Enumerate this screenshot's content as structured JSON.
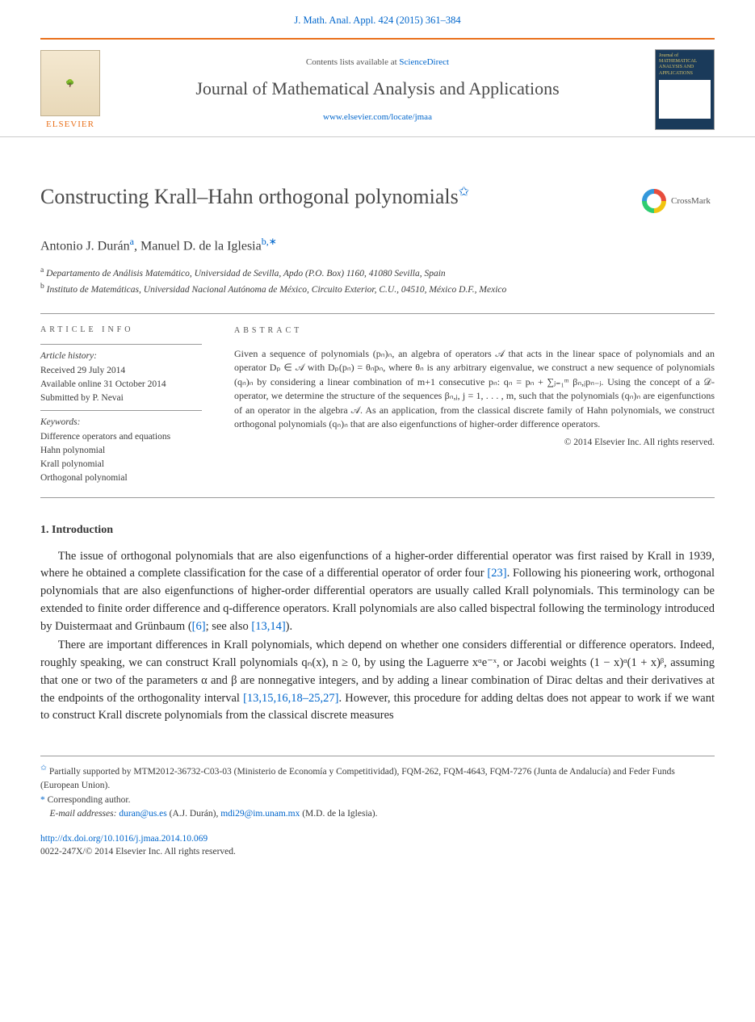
{
  "header": {
    "citation": "J. Math. Anal. Appl. 424 (2015) 361–384",
    "contents_prefix": "Contents lists available at ",
    "contents_link": "ScienceDirect",
    "journal_name": "Journal of Mathematical Analysis and Applications",
    "journal_url": "www.elsevier.com/locate/jmaa",
    "publisher": "ELSEVIER",
    "cover_text": "Journal of MATHEMATICAL ANALYSIS AND APPLICATIONS"
  },
  "article": {
    "title": "Constructing Krall–Hahn orthogonal polynomials",
    "title_note": "✩",
    "crossmark": "CrossMark",
    "authors_html": "Antonio J. Durán",
    "author1": "Antonio J. Durán",
    "author1_sup": "a",
    "author_sep": ", ",
    "author2": "Manuel D. de la Iglesia",
    "author2_sup": "b,∗",
    "affil_a_sup": "a",
    "affil_a": " Departamento de Análisis Matemático, Universidad de Sevilla, Apdo (P.O. Box) 1160, 41080 Sevilla, Spain",
    "affil_b_sup": "b",
    "affil_b": " Instituto de Matemáticas, Universidad Nacional Autónoma de México, Circuito Exterior, C.U., 04510, México D.F., Mexico"
  },
  "info": {
    "heading": "article info",
    "history_label": "Article history:",
    "received": "Received 29 July 2014",
    "available": "Available online 31 October 2014",
    "submitted": "Submitted by P. Nevai",
    "keywords_label": "Keywords:",
    "kw1": "Difference operators and equations",
    "kw2": "Hahn polynomial",
    "kw3": "Krall polynomial",
    "kw4": "Orthogonal polynomial"
  },
  "abstract": {
    "heading": "abstract",
    "text": "Given a sequence of polynomials (pₙ)ₙ, an algebra of operators 𝒜 that acts in the linear space of polynomials and an operator Dₚ ∈ 𝒜 with Dₚ(pₙ) = θₙpₙ, where θₙ is any arbitrary eigenvalue, we construct a new sequence of polynomials (qₙ)ₙ by considering a linear combination of m+1 consecutive pₙ: qₙ = pₙ + ∑ⱼ₌₁ᵐ βₙ,ⱼpₙ₋ⱼ. Using the concept of a 𝒟-operator, we determine the structure of the sequences βₙ,ⱼ, j = 1, . . . , m, such that the polynomials (qₙ)ₙ are eigenfunctions of an operator in the algebra 𝒜. As an application, from the classical discrete family of Hahn polynomials, we construct orthogonal polynomials (qₙ)ₙ that are also eigenfunctions of higher-order difference operators.",
    "copyright": "© 2014 Elsevier Inc. All rights reserved."
  },
  "body": {
    "section1": "1. Introduction",
    "p1a": "The issue of orthogonal polynomials that are also eigenfunctions of a higher-order differential operator was first raised by Krall in 1939, where he obtained a complete classification for the case of a differential operator of order four ",
    "p1_ref1": "[23]",
    "p1b": ". Following his pioneering work, orthogonal polynomials that are also eigenfunctions of higher-order differential operators are usually called Krall polynomials. This terminology can be extended to finite order difference and q-difference operators. Krall polynomials are also called bispectral following the terminology introduced by Duistermaat and Grünbaum (",
    "p1_ref2": "[6]",
    "p1c": "; see also ",
    "p1_ref3": "[13,14]",
    "p1d": ").",
    "p2a": "There are important differences in Krall polynomials, which depend on whether one considers differential or difference operators. Indeed, roughly speaking, we can construct Krall polynomials qₙ(x), n ≥ 0, by using the Laguerre xᵅe⁻ˣ, or Jacobi weights (1 − x)ᵅ(1 + x)ᵝ, assuming that one or two of the parameters α and β are nonnegative integers, and by adding a linear combination of Dirac deltas and their derivatives at the endpoints of the orthogonality interval ",
    "p2_ref1": "[13,15,16,18–25,27]",
    "p2b": ". However, this procedure for adding deltas does not appear to work if we want to construct Krall discrete polynomials from the classical discrete measures"
  },
  "footnotes": {
    "fn1_marker": "✩",
    "fn1": "Partially supported by MTM2012-36732-C03-03 (Ministerio de Economía y Competitividad), FQM-262, FQM-4643, FQM-7276 (Junta de Andalucía) and Feder Funds (European Union).",
    "fn2_marker": "*",
    "fn2": "Corresponding author.",
    "email_label": "E-mail addresses: ",
    "email1": "duran@us.es",
    "email1_who": " (A.J. Durán), ",
    "email2": "mdi29@im.unam.mx",
    "email2_who": " (M.D. de la Iglesia)."
  },
  "footer": {
    "doi": "http://dx.doi.org/10.1016/j.jmaa.2014.10.069",
    "rights": "0022-247X/© 2014 Elsevier Inc. All rights reserved."
  }
}
